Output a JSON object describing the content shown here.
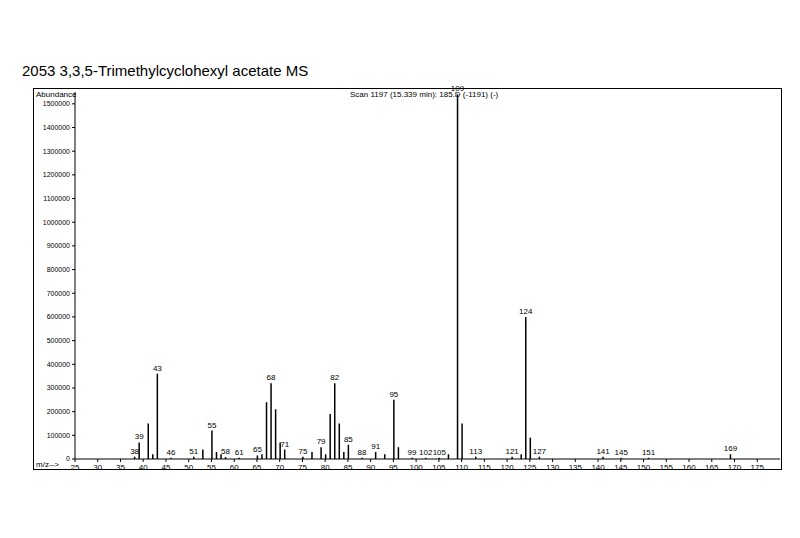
{
  "chart_data": {
    "type": "bar",
    "title": "2053 3,3,5-Trimethylcyclohexyl acetate MS",
    "subtitle": "Scan 1197 (15.339 min): 185.D (-1191) (-)",
    "y_label": "Abundance",
    "x_label": "m/z-->",
    "x": [
      38,
      39,
      41,
      42,
      43,
      46,
      51,
      53,
      55,
      56,
      57,
      58,
      61,
      65,
      66,
      67,
      68,
      69,
      70,
      71,
      75,
      77,
      79,
      80,
      81,
      82,
      83,
      84,
      85,
      88,
      91,
      93,
      95,
      96,
      99,
      102,
      105,
      107,
      109,
      110,
      113,
      121,
      123,
      124,
      125,
      127,
      141,
      145,
      151,
      169
    ],
    "values": [
      10000,
      70000,
      150000,
      20000,
      360000,
      5000,
      10000,
      40000,
      120000,
      30000,
      20000,
      8000,
      5000,
      15000,
      20000,
      240000,
      320000,
      210000,
      70000,
      40000,
      10000,
      30000,
      50000,
      20000,
      190000,
      320000,
      150000,
      30000,
      60000,
      5000,
      30000,
      20000,
      250000,
      50000,
      5000,
      5000,
      5000,
      20000,
      1540000,
      150000,
      10000,
      10000,
      20000,
      600000,
      90000,
      10000,
      10000,
      5000,
      5000,
      20000
    ],
    "color": "#000000",
    "xlim": [
      25,
      180
    ],
    "xticks": [
      25,
      30,
      35,
      40,
      45,
      50,
      55,
      60,
      65,
      70,
      75,
      80,
      85,
      90,
      95,
      100,
      105,
      110,
      115,
      120,
      125,
      130,
      135,
      140,
      145,
      150,
      155,
      160,
      165,
      170,
      175
    ],
    "ylim": [
      0,
      1550000
    ],
    "yticks": [
      0,
      100000,
      200000,
      300000,
      400000,
      500000,
      600000,
      700000,
      800000,
      900000,
      1000000,
      1100000,
      1200000,
      1300000,
      1400000,
      1500000
    ],
    "grid": false,
    "annotations": [
      {
        "x": 38,
        "text": "38"
      },
      {
        "x": 39,
        "text": "39"
      },
      {
        "x": 43,
        "text": "43"
      },
      {
        "x": 46,
        "text": "46"
      },
      {
        "x": 51,
        "text": "51"
      },
      {
        "x": 55,
        "text": "55"
      },
      {
        "x": 58,
        "text": "58"
      },
      {
        "x": 61,
        "text": "61"
      },
      {
        "x": 65,
        "text": "65"
      },
      {
        "x": 68,
        "text": "68"
      },
      {
        "x": 71,
        "text": "71"
      },
      {
        "x": 75,
        "text": "75"
      },
      {
        "x": 79,
        "text": "79"
      },
      {
        "x": 82,
        "text": "82"
      },
      {
        "x": 85,
        "text": "85"
      },
      {
        "x": 88,
        "text": "88"
      },
      {
        "x": 91,
        "text": "91"
      },
      {
        "x": 95,
        "text": "95"
      },
      {
        "x": 99,
        "text": "99"
      },
      {
        "x": 102,
        "text": "102"
      },
      {
        "x": 105,
        "text": "105"
      },
      {
        "x": 109,
        "text": "109"
      },
      {
        "x": 113,
        "text": "113"
      },
      {
        "x": 121,
        "text": "121"
      },
      {
        "x": 124,
        "text": "124"
      },
      {
        "x": 127,
        "text": "127"
      },
      {
        "x": 141,
        "text": "141"
      },
      {
        "x": 145,
        "text": "145"
      },
      {
        "x": 151,
        "text": "151"
      },
      {
        "x": 169,
        "text": "169"
      }
    ]
  }
}
